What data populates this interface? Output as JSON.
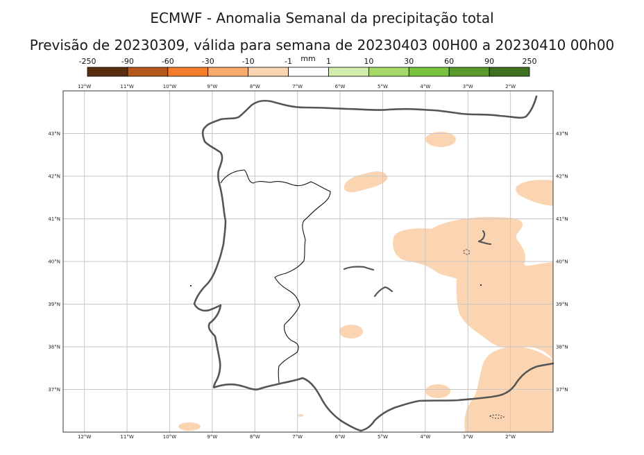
{
  "title": "ECMWF - Anomalia Semanal da precipitação total",
  "subtitle": "Previsão de 20230309, válida para semana de 20230403 00H00 a 20230410 00h00",
  "colorbar": {
    "unit": "mm",
    "boundaries": [
      "-250",
      "-90",
      "-60",
      "-30",
      "-10",
      "-1",
      "1",
      "10",
      "30",
      "60",
      "90",
      "250"
    ],
    "colors": [
      "#5a2e0e",
      "#b4581e",
      "#f37d2b",
      "#f8ab6c",
      "#fbd5b2",
      "#ffffff",
      "#d3edae",
      "#a7d96a",
      "#78c23e",
      "#5a9a2c",
      "#3f7120"
    ]
  },
  "map": {
    "lon_labels": [
      "12°W",
      "11°W",
      "10°W",
      "9°W",
      "8°W",
      "7°W",
      "6°W",
      "5°W",
      "4°W",
      "3°W",
      "2°W"
    ],
    "lat_labels": [
      "43°N",
      "42°N",
      "41°N",
      "40°N",
      "39°N",
      "38°N",
      "37°N"
    ],
    "lon_range": [
      -12.5,
      -1
    ],
    "lat_range": [
      36,
      44
    ],
    "anomaly_fill_color": "#fbd5b2",
    "anomaly_fill_class": "-10 to -1 mm",
    "grid": true
  }
}
